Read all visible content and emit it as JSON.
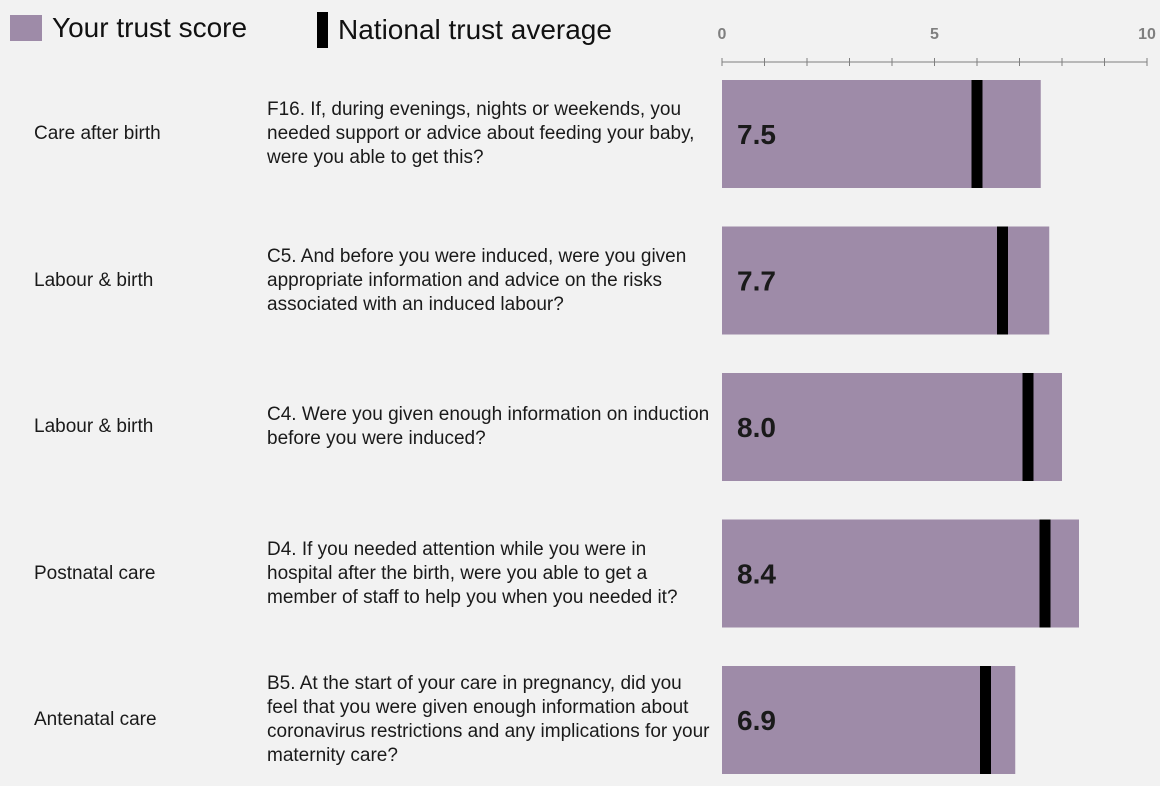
{
  "legend": {
    "score_label": "Your trust score",
    "average_label": "National trust average"
  },
  "colors": {
    "bar": "#9e8ba8",
    "average_marker": "#000000",
    "axis": "#7f7f7f"
  },
  "chart_data": {
    "type": "bar",
    "orientation": "horizontal",
    "xlim": [
      0,
      10
    ],
    "major_ticks": [
      0,
      5,
      10
    ],
    "minor_tick_step": 1,
    "grid": false,
    "legend_position": "top-left",
    "categories": [
      "Care after birth",
      "Labour & birth",
      "Labour & birth",
      "Postnatal care",
      "Antenatal care"
    ],
    "questions": [
      "F16. If, during evenings, nights or weekends, you needed support or advice about feeding your baby, were you able to get this?",
      "C5. And before you were induced, were you given appropriate information and advice on the risks associated with an induced labour?",
      "C4. Were you given enough information on induction before you were induced?",
      "D4. If you needed attention while you were in hospital after the birth, were you able to get a member of staff to help you when you needed it?",
      "B5. At the start of your care in pregnancy, did you feel that you were given enough information about coronavirus restrictions and any implications for your maternity care?"
    ],
    "series": [
      {
        "name": "Your trust score",
        "values": [
          7.5,
          7.7,
          8.0,
          8.4,
          6.9
        ],
        "labels": [
          "7.5",
          "7.7",
          "8.0",
          "8.4",
          "6.9"
        ]
      },
      {
        "name": "National trust average",
        "values": [
          6.0,
          6.6,
          7.2,
          7.6,
          6.2
        ]
      }
    ]
  }
}
